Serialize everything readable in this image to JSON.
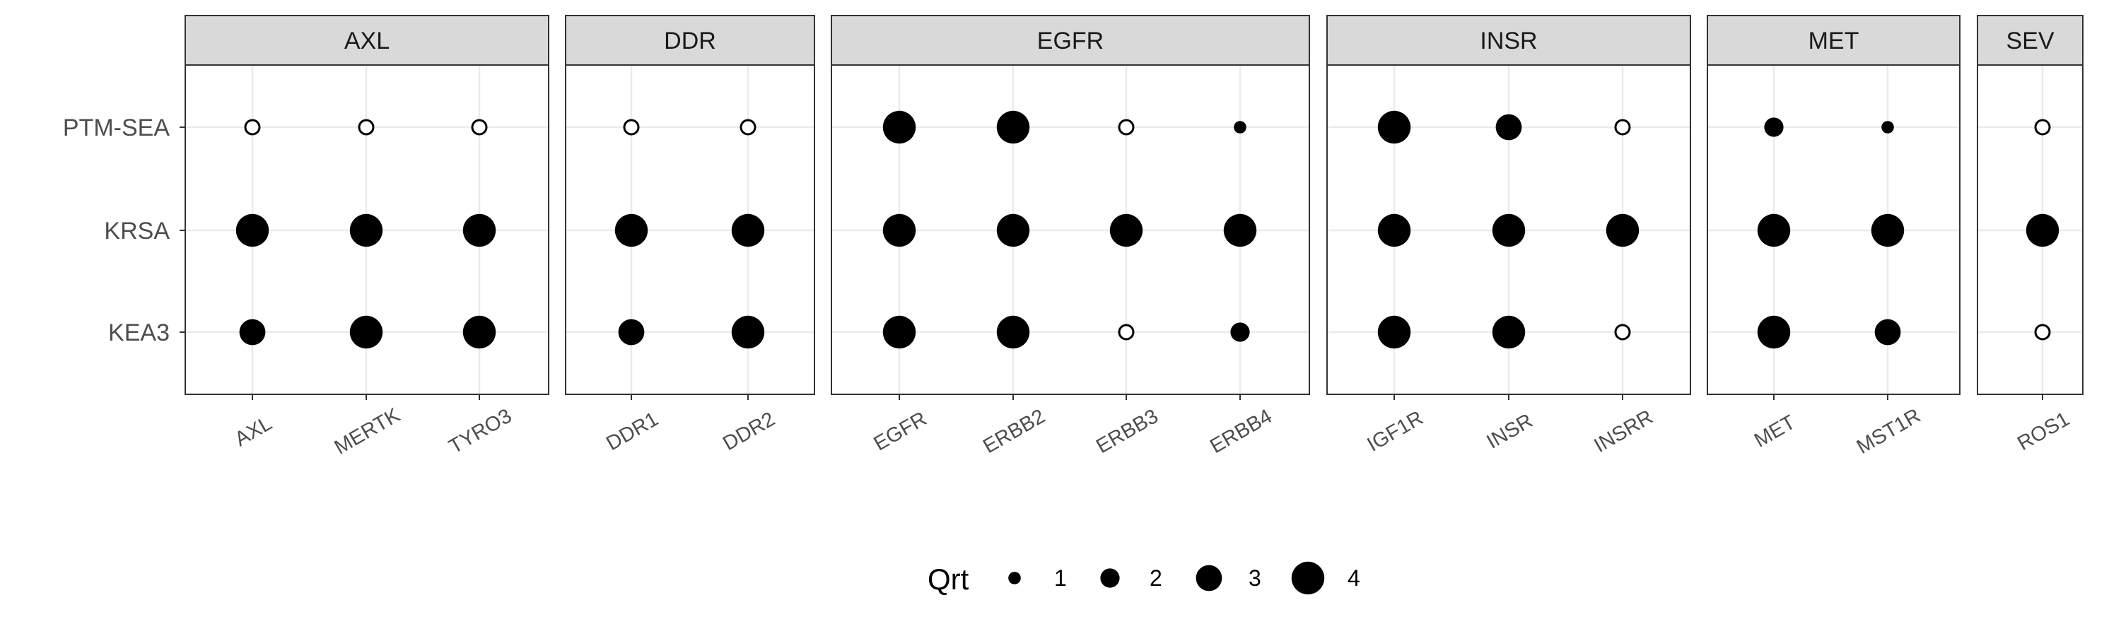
{
  "chart_data": {
    "type": "scatter",
    "subtype": "faceted-dot-plot",
    "title": "",
    "xlabel": "",
    "ylabel": "",
    "grid": true,
    "legend_position": "bottom",
    "y_categories": [
      "PTM-SEA",
      "KRSA",
      "KEA3"
    ],
    "size_legend": {
      "title": "Qrt",
      "values": [
        1,
        2,
        3,
        4
      ],
      "labels": [
        "1",
        "2",
        "3",
        "4"
      ]
    },
    "facets": [
      {
        "name": "AXL",
        "kinases": [
          "AXL",
          "MERTK",
          "TYRO3"
        ],
        "points": [
          {
            "kinase": "AXL",
            "method": "PTM-SEA",
            "qrt": null
          },
          {
            "kinase": "MERTK",
            "method": "PTM-SEA",
            "qrt": null
          },
          {
            "kinase": "TYRO3",
            "method": "PTM-SEA",
            "qrt": null
          },
          {
            "kinase": "AXL",
            "method": "KRSA",
            "qrt": 4
          },
          {
            "kinase": "MERTK",
            "method": "KRSA",
            "qrt": 4
          },
          {
            "kinase": "TYRO3",
            "method": "KRSA",
            "qrt": 4
          },
          {
            "kinase": "AXL",
            "method": "KEA3",
            "qrt": 3
          },
          {
            "kinase": "MERTK",
            "method": "KEA3",
            "qrt": 4
          },
          {
            "kinase": "TYRO3",
            "method": "KEA3",
            "qrt": 4
          }
        ]
      },
      {
        "name": "DDR",
        "kinases": [
          "DDR1",
          "DDR2"
        ],
        "points": [
          {
            "kinase": "DDR1",
            "method": "PTM-SEA",
            "qrt": null
          },
          {
            "kinase": "DDR2",
            "method": "PTM-SEA",
            "qrt": null
          },
          {
            "kinase": "DDR1",
            "method": "KRSA",
            "qrt": 4
          },
          {
            "kinase": "DDR2",
            "method": "KRSA",
            "qrt": 4
          },
          {
            "kinase": "DDR1",
            "method": "KEA3",
            "qrt": 3
          },
          {
            "kinase": "DDR2",
            "method": "KEA3",
            "qrt": 4
          }
        ]
      },
      {
        "name": "EGFR",
        "kinases": [
          "EGFR",
          "ERBB2",
          "ERBB3",
          "ERBB4"
        ],
        "points": [
          {
            "kinase": "EGFR",
            "method": "PTM-SEA",
            "qrt": 4
          },
          {
            "kinase": "ERBB2",
            "method": "PTM-SEA",
            "qrt": 4
          },
          {
            "kinase": "ERBB3",
            "method": "PTM-SEA",
            "qrt": null
          },
          {
            "kinase": "ERBB4",
            "method": "PTM-SEA",
            "qrt": 1
          },
          {
            "kinase": "EGFR",
            "method": "KRSA",
            "qrt": 4
          },
          {
            "kinase": "ERBB2",
            "method": "KRSA",
            "qrt": 4
          },
          {
            "kinase": "ERBB3",
            "method": "KRSA",
            "qrt": 4
          },
          {
            "kinase": "ERBB4",
            "method": "KRSA",
            "qrt": 4
          },
          {
            "kinase": "EGFR",
            "method": "KEA3",
            "qrt": 4
          },
          {
            "kinase": "ERBB2",
            "method": "KEA3",
            "qrt": 4
          },
          {
            "kinase": "ERBB3",
            "method": "KEA3",
            "qrt": null
          },
          {
            "kinase": "ERBB4",
            "method": "KEA3",
            "qrt": 2
          }
        ]
      },
      {
        "name": "INSR",
        "kinases": [
          "IGF1R",
          "INSR",
          "INSRR"
        ],
        "points": [
          {
            "kinase": "IGF1R",
            "method": "PTM-SEA",
            "qrt": 4
          },
          {
            "kinase": "INSR",
            "method": "PTM-SEA",
            "qrt": 3
          },
          {
            "kinase": "INSRR",
            "method": "PTM-SEA",
            "qrt": null
          },
          {
            "kinase": "IGF1R",
            "method": "KRSA",
            "qrt": 4
          },
          {
            "kinase": "INSR",
            "method": "KRSA",
            "qrt": 4
          },
          {
            "kinase": "INSRR",
            "method": "KRSA",
            "qrt": 4
          },
          {
            "kinase": "IGF1R",
            "method": "KEA3",
            "qrt": 4
          },
          {
            "kinase": "INSR",
            "method": "KEA3",
            "qrt": 4
          },
          {
            "kinase": "INSRR",
            "method": "KEA3",
            "qrt": null
          }
        ]
      },
      {
        "name": "MET",
        "kinases": [
          "MET",
          "MST1R"
        ],
        "points": [
          {
            "kinase": "MET",
            "method": "PTM-SEA",
            "qrt": 2
          },
          {
            "kinase": "MST1R",
            "method": "PTM-SEA",
            "qrt": 1
          },
          {
            "kinase": "MET",
            "method": "KRSA",
            "qrt": 4
          },
          {
            "kinase": "MST1R",
            "method": "KRSA",
            "qrt": 4
          },
          {
            "kinase": "MET",
            "method": "KEA3",
            "qrt": 4
          },
          {
            "kinase": "MST1R",
            "method": "KEA3",
            "qrt": 3
          }
        ]
      },
      {
        "name": "SEV",
        "kinases": [
          "ROS1"
        ],
        "points": [
          {
            "kinase": "ROS1",
            "method": "PTM-SEA",
            "qrt": null
          },
          {
            "kinase": "ROS1",
            "method": "KRSA",
            "qrt": 4
          },
          {
            "kinase": "ROS1",
            "method": "KEA3",
            "qrt": null
          }
        ]
      }
    ]
  }
}
